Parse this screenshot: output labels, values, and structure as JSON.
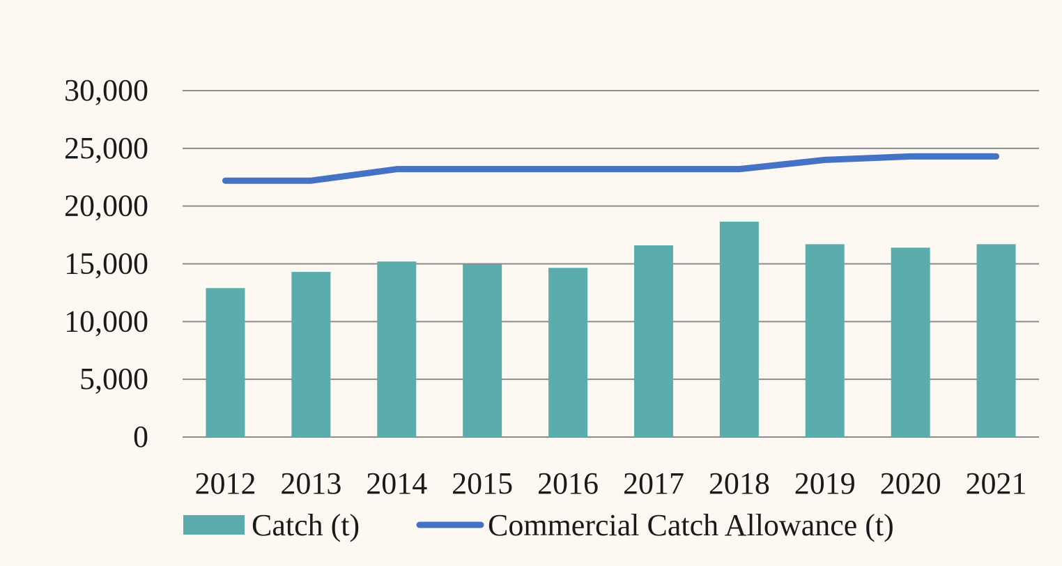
{
  "chart_data": {
    "type": "bar",
    "categories": [
      "2012",
      "2013",
      "2014",
      "2015",
      "2016",
      "2017",
      "2018",
      "2019",
      "2020",
      "2021"
    ],
    "series": [
      {
        "name": "Catch (t)",
        "kind": "bar",
        "color": "#5aadac",
        "values": [
          12900,
          14300,
          15200,
          14950,
          14650,
          16600,
          18650,
          16700,
          16400,
          16700
        ]
      },
      {
        "name": "Commercial Catch Allowance (t)",
        "kind": "line",
        "color": "#4472c4",
        "values": [
          22200,
          22200,
          23200,
          23200,
          23200,
          23200,
          23200,
          24000,
          24300,
          24300
        ]
      }
    ],
    "title": "",
    "xlabel": "",
    "ylabel": "",
    "ylim": [
      0,
      30000
    ],
    "yticks": [
      "0",
      "5,000",
      "10,000",
      "15,000",
      "20,000",
      "25,000",
      "30,000"
    ],
    "grid": true,
    "legend_position": "bottom"
  }
}
